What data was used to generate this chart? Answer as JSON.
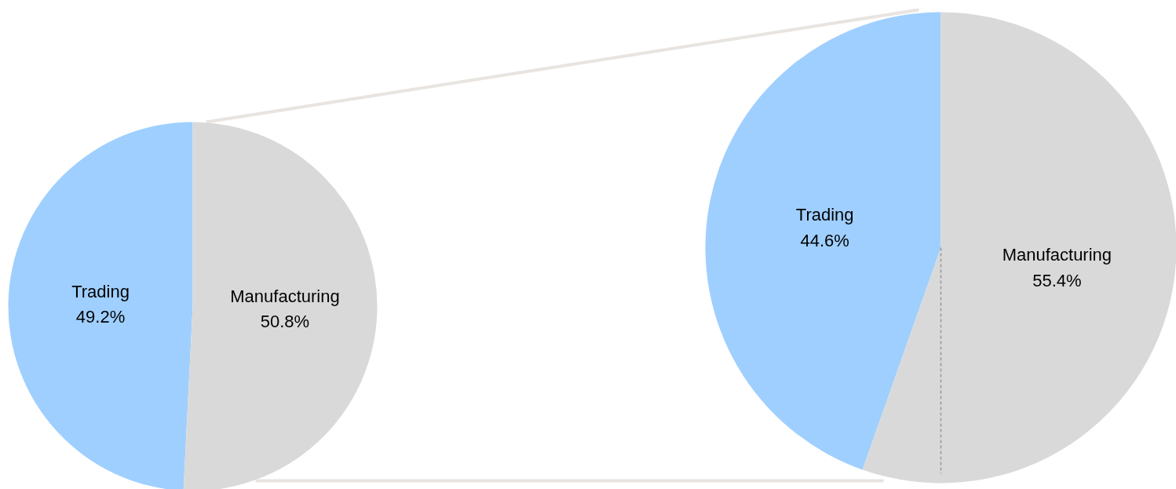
{
  "chart_data": [
    {
      "type": "pie",
      "categories": [
        "Trading",
        "Manufacturing"
      ],
      "values": [
        49.2,
        50.8
      ],
      "value_labels": [
        "49.2%",
        "50.8%"
      ],
      "colors": [
        "#9fcfff",
        "#d9d9d9"
      ]
    },
    {
      "type": "pie",
      "categories": [
        "Trading",
        "Manufacturing"
      ],
      "values": [
        44.6,
        55.4
      ],
      "value_labels": [
        "44.6%",
        "55.4%"
      ],
      "colors": [
        "#9fcfff",
        "#d9d9d9"
      ],
      "needle": "Manufacturing"
    }
  ]
}
